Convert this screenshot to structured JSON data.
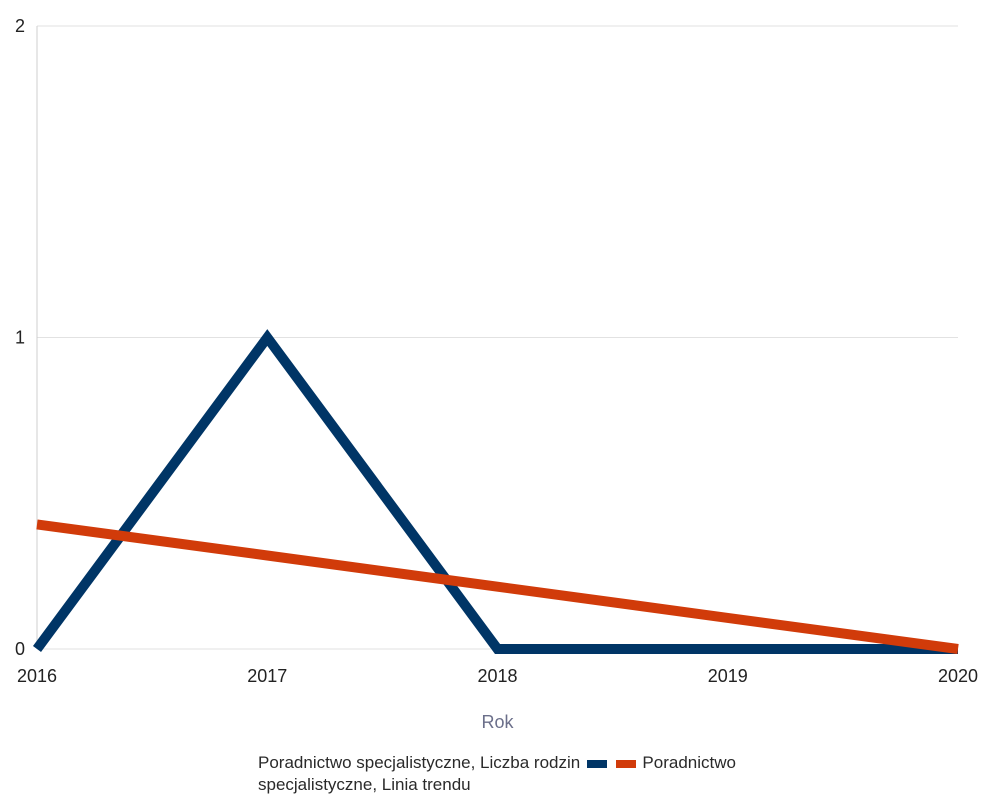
{
  "chart_data": {
    "type": "line",
    "categories": [
      "2016",
      "2017",
      "2018",
      "2019",
      "2020"
    ],
    "x": [
      2016,
      2017,
      2018,
      2019,
      2020
    ],
    "y_ticks": [
      "0",
      "1",
      "2"
    ],
    "ylim": [
      0,
      2
    ],
    "xlabel": "Rok",
    "ylabel": "",
    "title": "",
    "grid": true,
    "legend_position": "bottom",
    "series": [
      {
        "name": "Poradnictwo specjalistyczne, Liczba rodzin",
        "values": [
          0,
          1,
          0,
          0,
          0
        ],
        "color": "#003566"
      },
      {
        "name": "Poradnictwo specjalistyczne, Linia trendu",
        "values": [
          0.4,
          0.3,
          0.2,
          0.1,
          0.0
        ],
        "color": "#d13b0a"
      }
    ]
  }
}
